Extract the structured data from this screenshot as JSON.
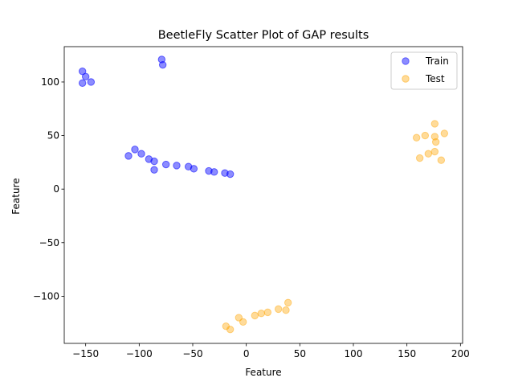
{
  "chart_data": {
    "type": "scatter",
    "title": "BeetleFly Scatter Plot of GAP results",
    "xlabel": "Feature",
    "ylabel": "Feature",
    "xlim": [
      -170,
      202
    ],
    "ylim": [
      -144,
      133
    ],
    "xticks": [
      -150,
      -100,
      -50,
      0,
      50,
      100,
      150,
      200
    ],
    "yticks": [
      -100,
      -50,
      0,
      50,
      100
    ],
    "grid": false,
    "legend_position": "top-right",
    "series": [
      {
        "name": "Train",
        "color": "#0000ff",
        "points": [
          [
            -153,
            110
          ],
          [
            -150,
            105
          ],
          [
            -153,
            99
          ],
          [
            -145,
            100
          ],
          [
            -79,
            121
          ],
          [
            -78,
            116
          ],
          [
            -110,
            31
          ],
          [
            -104,
            37
          ],
          [
            -98,
            33
          ],
          [
            -91,
            28
          ],
          [
            -86,
            26
          ],
          [
            -86,
            18
          ],
          [
            -75,
            23
          ],
          [
            -65,
            22
          ],
          [
            -54,
            21
          ],
          [
            -49,
            19
          ],
          [
            -35,
            17
          ],
          [
            -30,
            16
          ],
          [
            -20,
            15
          ],
          [
            -15,
            14
          ]
        ]
      },
      {
        "name": "Test",
        "color": "#ffa500",
        "points": [
          [
            176,
            61
          ],
          [
            185,
            52
          ],
          [
            167,
            50
          ],
          [
            159,
            48
          ],
          [
            176,
            49
          ],
          [
            177,
            44
          ],
          [
            176,
            35
          ],
          [
            170,
            33
          ],
          [
            162,
            29
          ],
          [
            182,
            27
          ],
          [
            39,
            -106
          ],
          [
            37,
            -113
          ],
          [
            30,
            -112
          ],
          [
            20,
            -115
          ],
          [
            14,
            -116
          ],
          [
            8,
            -118
          ],
          [
            -7,
            -120
          ],
          [
            -3,
            -124
          ],
          [
            -19,
            -128
          ],
          [
            -15,
            -131
          ]
        ]
      }
    ]
  }
}
